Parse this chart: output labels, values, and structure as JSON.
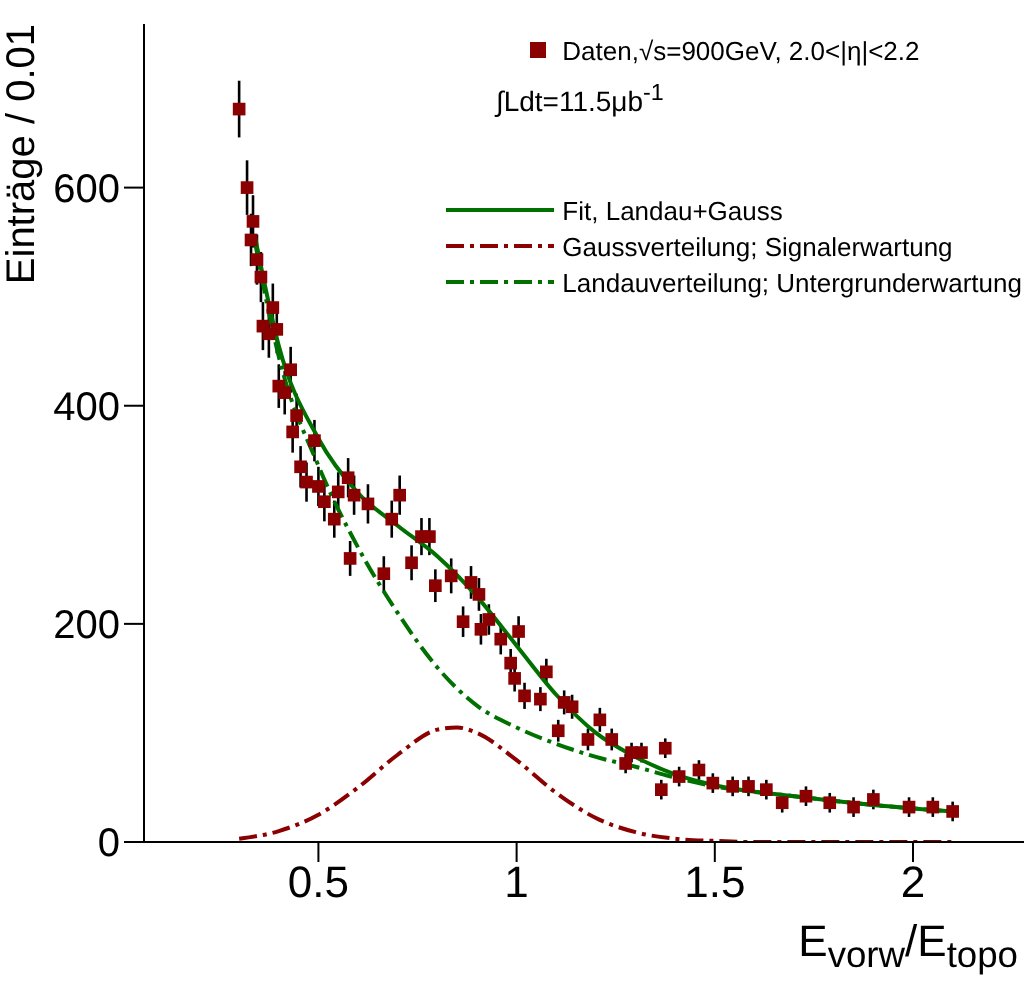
{
  "chart_data": {
    "type": "scatter",
    "xlabel": "E$_{vorw}$/E$_{topo}$",
    "ylabel": "Einträge / 0.01",
    "xlim": [
      0.06,
      2.28
    ],
    "ylim": [
      0,
      750
    ],
    "xticks": [
      0.5,
      1,
      1.5,
      2
    ],
    "yticks": [
      0,
      200,
      400,
      600
    ],
    "legend": "top right",
    "annotations": [
      "∫Ldt=11.5μb$^{-1}$"
    ],
    "series": [
      {
        "name": "Daten,√s=900GeV, 2.0<|η|<2.2",
        "marker": "square",
        "color": "#8b0000",
        "x": [
          0.3,
          0.32,
          0.33,
          0.335,
          0.345,
          0.355,
          0.36,
          0.375,
          0.385,
          0.395,
          0.4,
          0.415,
          0.43,
          0.435,
          0.445,
          0.455,
          0.47,
          0.49,
          0.5,
          0.515,
          0.54,
          0.55,
          0.575,
          0.58,
          0.59,
          0.625,
          0.665,
          0.685,
          0.705,
          0.735,
          0.76,
          0.78,
          0.795,
          0.835,
          0.865,
          0.885,
          0.905,
          0.91,
          0.93,
          0.96,
          0.985,
          0.995,
          1.005,
          1.02,
          1.06,
          1.075,
          1.105,
          1.12,
          1.14,
          1.18,
          1.21,
          1.24,
          1.275,
          1.29,
          1.315,
          1.365,
          1.375,
          1.41,
          1.46,
          1.495,
          1.545,
          1.585,
          1.63,
          1.67,
          1.73,
          1.79,
          1.85,
          1.9,
          1.99,
          2.05,
          2.1
        ],
        "values": [
          672,
          600,
          552,
          569,
          534,
          518,
          473,
          466,
          490,
          470,
          418,
          412,
          433,
          376,
          391,
          344,
          330,
          368,
          326,
          312,
          296,
          321,
          334,
          260,
          318,
          310,
          246,
          296,
          318,
          256,
          280,
          280,
          235,
          244,
          202,
          238,
          227,
          195,
          204,
          186,
          164,
          150,
          193,
          134,
          131,
          156,
          102,
          128,
          124,
          94,
          112,
          94,
          72,
          82,
          82,
          48,
          86,
          60,
          66,
          54,
          51,
          51,
          48,
          36,
          42,
          36,
          32,
          39,
          32,
          32,
          28
        ],
        "errors": [
          26,
          25,
          24,
          24,
          23,
          23,
          22,
          22,
          22,
          22,
          20,
          20,
          21,
          19,
          20,
          19,
          18,
          19,
          18,
          18,
          17,
          18,
          18,
          16,
          18,
          18,
          16,
          17,
          18,
          16,
          17,
          17,
          15,
          16,
          14,
          15,
          15,
          14,
          14,
          14,
          13,
          12,
          14,
          12,
          11,
          12,
          10,
          11,
          11,
          10,
          11,
          10,
          9,
          9,
          9,
          9,
          9,
          9,
          9,
          9,
          9,
          9,
          9,
          9,
          9,
          9,
          9,
          9,
          9,
          9,
          9
        ]
      },
      {
        "name": "Fit, Landau+Gauss",
        "type": "line",
        "color": "#007000",
        "line_style": "solid",
        "x": [
          0.34,
          0.4,
          0.5,
          0.6,
          0.7,
          0.8,
          0.9,
          1.0,
          1.1,
          1.2,
          1.3,
          1.4,
          1.5,
          1.7,
          1.9,
          2.1
        ],
        "values": [
          555,
          455,
          370,
          320,
          290,
          262,
          225,
          180,
          135,
          100,
          78,
          62,
          52,
          42,
          34,
          28
        ]
      },
      {
        "name": "Gaussverteilung; Signalerwartung",
        "type": "line",
        "color": "#8b0000",
        "line_style": "dashed",
        "x": [
          0.3,
          0.4,
          0.5,
          0.6,
          0.7,
          0.8,
          0.85,
          0.9,
          1.0,
          1.1,
          1.2,
          1.3,
          1.4,
          1.5,
          1.6,
          1.8,
          2.1
        ],
        "values": [
          3,
          10,
          25,
          50,
          80,
          103,
          105,
          100,
          75,
          45,
          22,
          9,
          3,
          1,
          0,
          0,
          0
        ]
      },
      {
        "name": "Landauverteilung; Untergrunderwartung",
        "type": "line",
        "color": "#007000",
        "line_style": "dashed",
        "x": [
          0.34,
          0.4,
          0.5,
          0.6,
          0.7,
          0.8,
          0.9,
          1.0,
          1.1,
          1.2,
          1.3,
          1.4,
          1.5,
          1.7,
          1.9,
          2.1
        ],
        "values": [
          550,
          445,
          345,
          270,
          210,
          160,
          125,
          105,
          90,
          78,
          69,
          59,
          51,
          42,
          34,
          28
        ]
      }
    ]
  }
}
